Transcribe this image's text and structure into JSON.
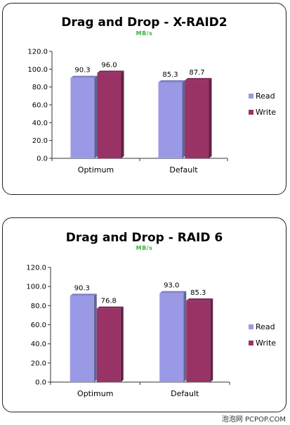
{
  "chart_data": [
    {
      "type": "bar",
      "title": "Drag and Drop - X-RAID2",
      "subtitle": "MB/s",
      "categories": [
        "Optimum",
        "Default"
      ],
      "series": [
        {
          "name": "Read",
          "values": [
            90.3,
            85.3
          ],
          "color": "#9999e6"
        },
        {
          "name": "Write",
          "values": [
            96.0,
            87.7
          ],
          "color": "#993366"
        }
      ],
      "data_labels": [
        [
          "90.3",
          "85.3"
        ],
        [
          "96.0",
          "87.7"
        ]
      ],
      "yticks": [
        "0.0",
        "20.0",
        "40.0",
        "60.0",
        "80.0",
        "100.0",
        "120.0"
      ],
      "ylim": [
        0,
        120
      ],
      "legend_position": "right",
      "grid": false
    },
    {
      "type": "bar",
      "title": "Drag and Drop - RAID 6",
      "subtitle": "MB/s",
      "categories": [
        "Optimum",
        "Default"
      ],
      "series": [
        {
          "name": "Read",
          "values": [
            90.3,
            93.0
          ],
          "color": "#9999e6"
        },
        {
          "name": "Write",
          "values": [
            76.8,
            85.3
          ],
          "color": "#993366"
        }
      ],
      "data_labels": [
        [
          "90.3",
          "93.0"
        ],
        [
          "76.8",
          "85.3"
        ]
      ],
      "yticks": [
        "0.0",
        "20.0",
        "40.0",
        "60.0",
        "80.0",
        "100.0",
        "120.0"
      ],
      "ylim": [
        0,
        120
      ],
      "legend_position": "right",
      "grid": false
    }
  ],
  "watermark": "泡泡网 PCPOP.COM"
}
